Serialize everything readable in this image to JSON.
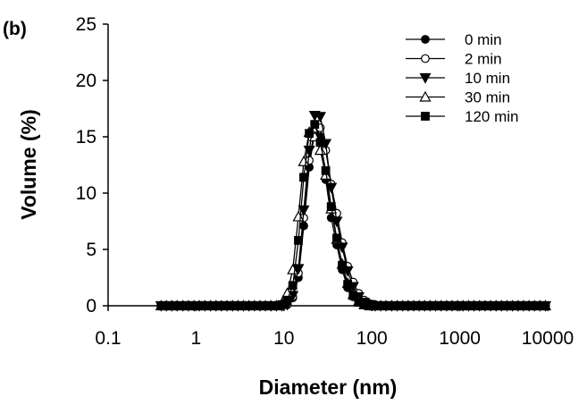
{
  "chart_data": {
    "type": "line",
    "panel_label": "(b)",
    "xlabel": "Diameter (nm)",
    "ylabel": "Volume (%)",
    "x_scale": "log",
    "xlim": [
      0.1,
      10000
    ],
    "ylim": [
      0,
      25
    ],
    "x_tick_labels": [
      "0.1",
      "1",
      "10",
      "100",
      "1000",
      "10000"
    ],
    "y_tick_labels": [
      "0",
      "5",
      "10",
      "15",
      "20",
      "25"
    ],
    "grid": false,
    "legend_position": "top-right",
    "series_x": [
      0.4,
      0.46,
      0.53,
      0.61,
      0.71,
      0.82,
      0.95,
      1.09,
      1.26,
      1.46,
      1.69,
      1.95,
      2.25,
      2.6,
      3.0,
      3.47,
      4.0,
      4.62,
      5.34,
      6.16,
      7.11,
      8.21,
      9.48,
      10.9,
      12.6,
      14.6,
      16.8,
      19.4,
      22.4,
      25.9,
      29.9,
      34.5,
      39.9,
      46.0,
      53.1,
      61.3,
      70.8,
      81.8,
      94.4,
      109,
      126,
      145,
      168,
      194,
      224,
      259,
      299,
      345,
      398,
      460,
      531,
      613,
      708,
      818,
      944,
      1090,
      1260,
      1450,
      1680,
      1940,
      2240,
      2590,
      2990,
      3450,
      3980,
      4600,
      5310,
      6130,
      7080,
      8180,
      9440
    ],
    "series": [
      {
        "name": "0 min",
        "marker": "filled-circle",
        "values": [
          0,
          0,
          0,
          0,
          0,
          0,
          0,
          0,
          0,
          0,
          0,
          0,
          0,
          0,
          0,
          0,
          0,
          0,
          0,
          0,
          0,
          0,
          0,
          0.1,
          0.7,
          2.5,
          7.1,
          12.3,
          15.5,
          15.0,
          11.2,
          7.8,
          5.4,
          3.2,
          1.6,
          0.8,
          0.3,
          0.1,
          0,
          0,
          0,
          0,
          0,
          0,
          0,
          0,
          0,
          0,
          0,
          0,
          0,
          0,
          0,
          0,
          0,
          0,
          0,
          0,
          0,
          0,
          0,
          0,
          0,
          0,
          0,
          0,
          0,
          0,
          0,
          0,
          0
        ]
      },
      {
        "name": "2 min",
        "marker": "open-circle",
        "values": [
          0,
          0,
          0,
          0,
          0,
          0,
          0,
          0,
          0,
          0,
          0,
          0,
          0,
          0,
          0,
          0,
          0,
          0,
          0,
          0,
          0,
          0,
          0,
          0.1,
          0.8,
          2.9,
          7.8,
          12.9,
          15.7,
          15.8,
          13.8,
          10.8,
          8.2,
          5.6,
          3.5,
          2.1,
          1.1,
          0.5,
          0.2,
          0.1,
          0,
          0,
          0,
          0,
          0,
          0,
          0,
          0,
          0,
          0,
          0,
          0,
          0,
          0,
          0,
          0,
          0,
          0,
          0,
          0,
          0,
          0,
          0,
          0,
          0,
          0,
          0,
          0,
          0,
          0,
          0
        ]
      },
      {
        "name": "10 min",
        "marker": "filled-triangle-down",
        "values": [
          0,
          0,
          0,
          0,
          0,
          0,
          0,
          0,
          0,
          0,
          0,
          0,
          0,
          0,
          0,
          0,
          0,
          0,
          0,
          0,
          0,
          0,
          0,
          0.1,
          0.9,
          3.3,
          8.5,
          13.8,
          16.9,
          16.8,
          14.4,
          10.5,
          7.5,
          5.2,
          3.1,
          1.7,
          0.8,
          0.3,
          0.1,
          0,
          0,
          0,
          0,
          0,
          0,
          0,
          0,
          0,
          0,
          0,
          0,
          0,
          0,
          0,
          0,
          0,
          0,
          0,
          0,
          0,
          0,
          0,
          0,
          0,
          0,
          0,
          0,
          0,
          0,
          0,
          0
        ]
      },
      {
        "name": "30 min",
        "marker": "open-triangle-up",
        "values": [
          0,
          0,
          0,
          0,
          0,
          0,
          0,
          0,
          0,
          0,
          0,
          0,
          0,
          0,
          0,
          0,
          0,
          0,
          0,
          0,
          0,
          0,
          0.2,
          1.1,
          3.2,
          7.9,
          12.8,
          15.4,
          15.0,
          13.8,
          11.6,
          8.6,
          5.9,
          3.7,
          2.0,
          1.0,
          0.4,
          0.1,
          0,
          0,
          0,
          0,
          0,
          0,
          0,
          0,
          0,
          0,
          0,
          0,
          0,
          0,
          0,
          0,
          0,
          0,
          0,
          0,
          0,
          0,
          0,
          0,
          0,
          0,
          0,
          0,
          0,
          0,
          0,
          0,
          0
        ]
      },
      {
        "name": "120 min",
        "marker": "filled-square",
        "values": [
          0,
          0,
          0,
          0,
          0,
          0,
          0,
          0,
          0,
          0,
          0,
          0,
          0,
          0,
          0,
          0,
          0,
          0,
          0,
          0,
          0,
          0,
          0.1,
          0.5,
          1.8,
          5.8,
          11.4,
          15.3,
          16.1,
          14.5,
          12.0,
          8.8,
          6.0,
          3.6,
          1.9,
          0.9,
          0.3,
          0.1,
          0,
          0,
          0,
          0,
          0,
          0,
          0,
          0,
          0,
          0,
          0,
          0,
          0,
          0,
          0,
          0,
          0,
          0,
          0,
          0,
          0,
          0,
          0,
          0,
          0,
          0,
          0,
          0,
          0,
          0,
          0,
          0,
          0
        ]
      }
    ]
  }
}
